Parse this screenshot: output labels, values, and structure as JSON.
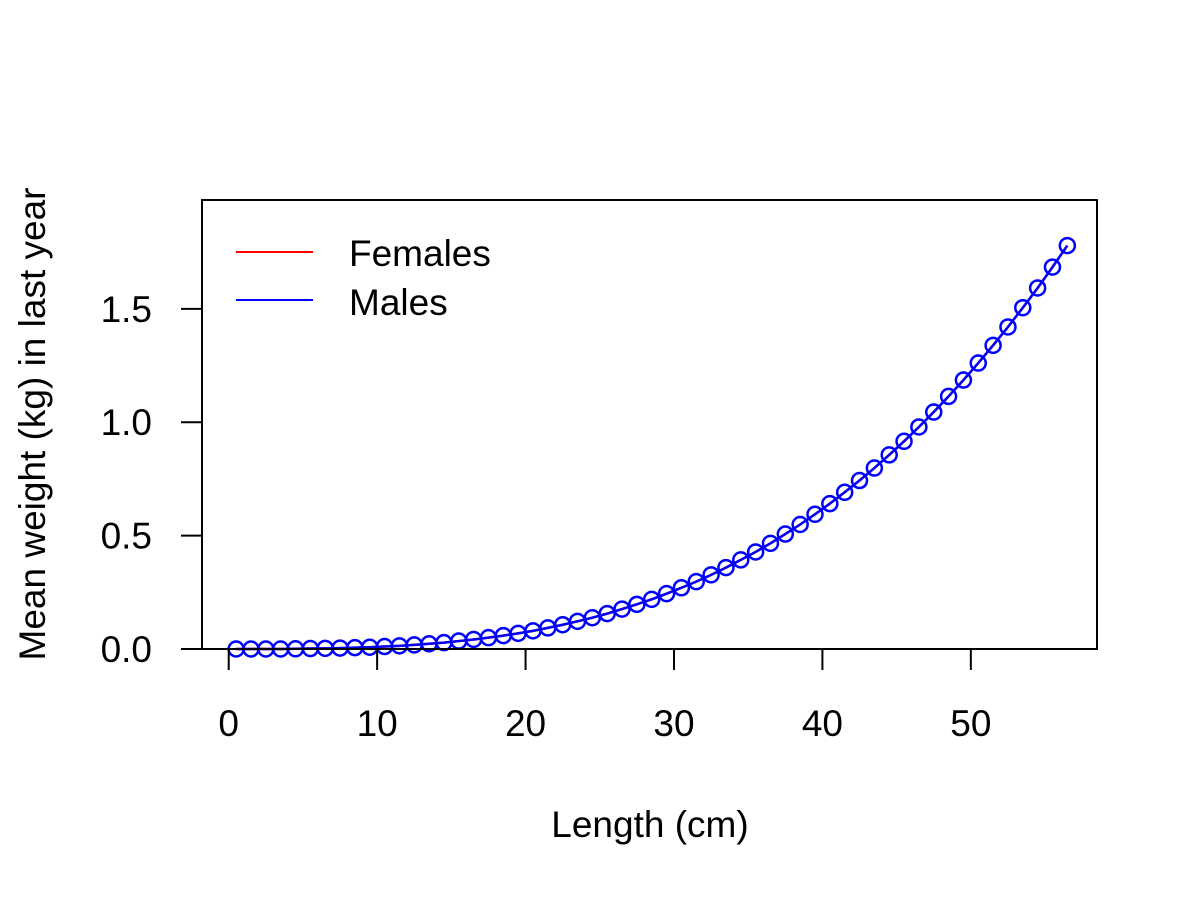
{
  "chart_data": {
    "type": "line",
    "title": "",
    "xlabel": "Length (cm)",
    "ylabel": "Mean weight (kg) in last year",
    "xlim": [
      -1.8,
      58.5
    ],
    "ylim": [
      0,
      1.98
    ],
    "x_ticks": [
      0,
      10,
      20,
      30,
      40,
      50
    ],
    "y_ticks": [
      0.0,
      0.5,
      1.0,
      1.5
    ],
    "y_tick_labels": [
      "0.0",
      "0.5",
      "1.0",
      "1.5"
    ],
    "grid": false,
    "legend_position": "top-left",
    "series": [
      {
        "name": "Females",
        "color": "#ff0000",
        "markers": "none",
        "x": [
          0.5,
          1.5,
          2.5,
          3.5,
          4.5,
          5.5,
          6.5,
          7.5,
          8.5,
          9.5,
          10.5,
          11.5,
          12.5,
          13.5,
          14.5,
          15.5,
          16.5,
          17.5,
          18.5,
          19.5,
          20.5,
          21.5,
          22.5,
          23.5,
          24.5,
          25.5,
          26.5,
          27.5,
          28.5,
          29.5,
          30.5,
          31.5,
          32.5,
          33.5,
          34.5,
          35.5,
          36.5,
          37.5,
          38.5,
          39.5,
          40.5,
          41.5,
          42.5,
          43.5,
          44.5,
          45.5,
          46.5,
          47.5,
          48.5,
          49.5,
          50.5,
          51.5,
          52.5,
          53.5,
          54.5,
          55.5,
          56.5
        ],
        "y": [
          0.0,
          0.0,
          0.0,
          0.0,
          0.001,
          0.002,
          0.003,
          0.004,
          0.006,
          0.008,
          0.011,
          0.014,
          0.018,
          0.023,
          0.028,
          0.035,
          0.042,
          0.05,
          0.059,
          0.069,
          0.08,
          0.093,
          0.107,
          0.122,
          0.138,
          0.156,
          0.176,
          0.197,
          0.219,
          0.244,
          0.27,
          0.297,
          0.327,
          0.359,
          0.393,
          0.428,
          0.466,
          0.507,
          0.549,
          0.594,
          0.641,
          0.691,
          0.743,
          0.798,
          0.856,
          0.916,
          0.979,
          1.045,
          1.114,
          1.186,
          1.261,
          1.339,
          1.42,
          1.505,
          1.592,
          1.684,
          1.779
        ]
      },
      {
        "name": "Males",
        "color": "#0000ff",
        "markers": "open-circle",
        "x": [
          0.5,
          1.5,
          2.5,
          3.5,
          4.5,
          5.5,
          6.5,
          7.5,
          8.5,
          9.5,
          10.5,
          11.5,
          12.5,
          13.5,
          14.5,
          15.5,
          16.5,
          17.5,
          18.5,
          19.5,
          20.5,
          21.5,
          22.5,
          23.5,
          24.5,
          25.5,
          26.5,
          27.5,
          28.5,
          29.5,
          30.5,
          31.5,
          32.5,
          33.5,
          34.5,
          35.5,
          36.5,
          37.5,
          38.5,
          39.5,
          40.5,
          41.5,
          42.5,
          43.5,
          44.5,
          45.5,
          46.5,
          47.5,
          48.5,
          49.5,
          50.5,
          51.5,
          52.5,
          53.5,
          54.5,
          55.5,
          56.5
        ],
        "y": [
          0.0,
          0.0,
          0.0,
          0.0,
          0.001,
          0.002,
          0.003,
          0.004,
          0.006,
          0.008,
          0.011,
          0.014,
          0.018,
          0.023,
          0.028,
          0.035,
          0.042,
          0.05,
          0.059,
          0.069,
          0.08,
          0.093,
          0.107,
          0.122,
          0.138,
          0.156,
          0.176,
          0.197,
          0.219,
          0.244,
          0.27,
          0.297,
          0.327,
          0.359,
          0.393,
          0.428,
          0.466,
          0.507,
          0.549,
          0.594,
          0.641,
          0.691,
          0.743,
          0.798,
          0.856,
          0.916,
          0.979,
          1.045,
          1.114,
          1.186,
          1.261,
          1.339,
          1.42,
          1.505,
          1.592,
          1.684,
          1.779
        ]
      }
    ]
  }
}
